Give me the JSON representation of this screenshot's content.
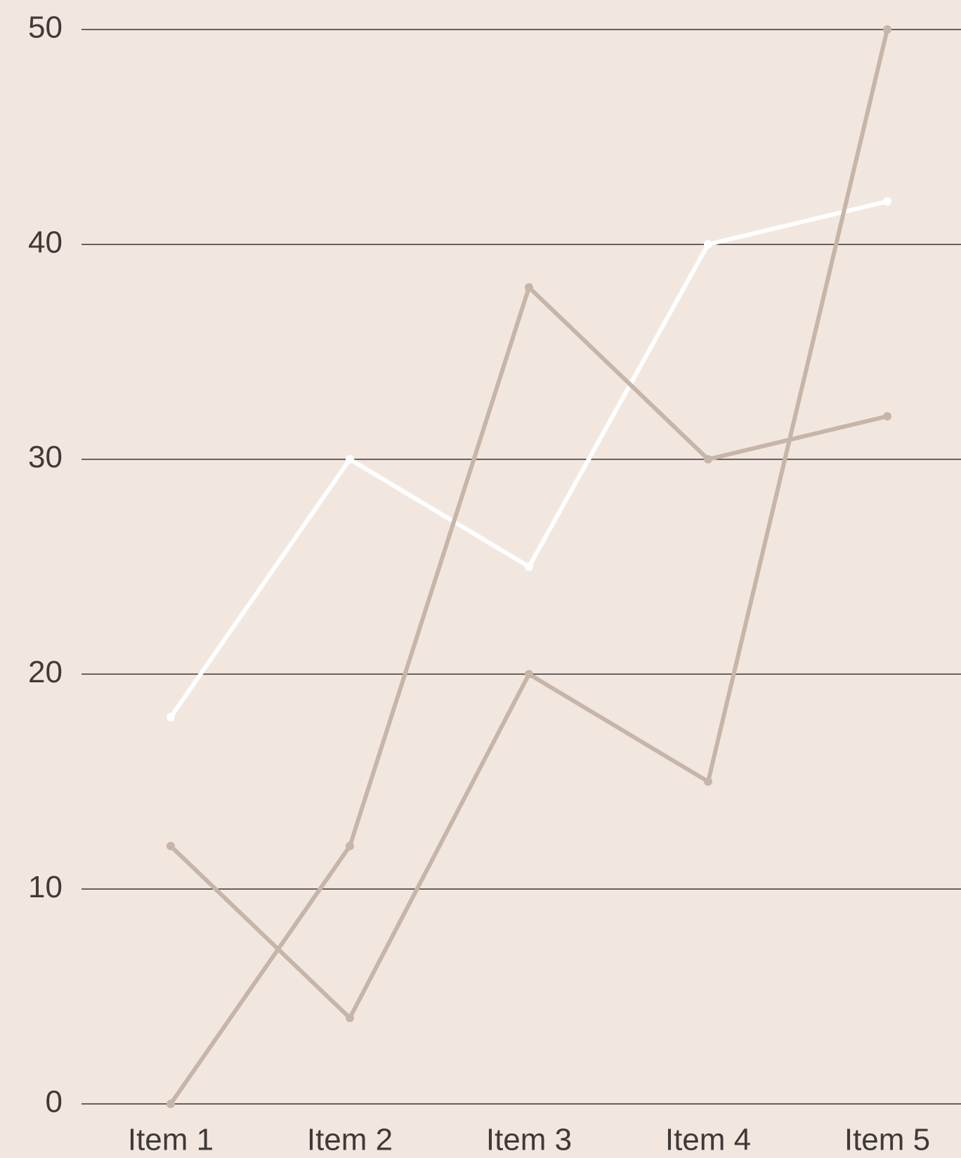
{
  "chart_data": {
    "type": "line",
    "categories": [
      "Item 1",
      "Item 2",
      "Item 3",
      "Item 4",
      "Item 5"
    ],
    "series": [
      {
        "color": "#ffffff",
        "values": [
          18,
          30,
          25,
          40,
          42
        ]
      },
      {
        "color": "#c6b5a8",
        "values": [
          12,
          4,
          20,
          15,
          50
        ]
      },
      {
        "color": "#c6b5a8",
        "values": [
          0,
          12,
          38,
          30,
          32
        ]
      }
    ],
    "ylim": [
      0,
      50
    ],
    "yticks": [
      0,
      10,
      20,
      30,
      40,
      50
    ],
    "grid": true
  }
}
